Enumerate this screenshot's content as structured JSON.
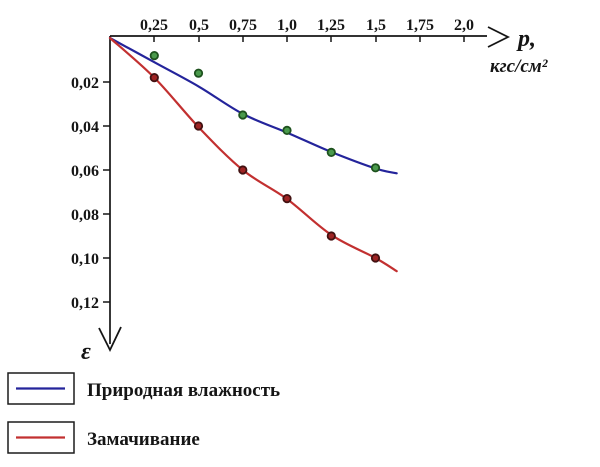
{
  "chart_data": {
    "type": "scatter",
    "title": "",
    "x_axis": {
      "label_line1": "p,",
      "label_line2": "кгс/см²",
      "ticks": [
        0.25,
        0.5,
        0.75,
        1.0,
        1.25,
        1.5,
        1.75,
        2.0
      ],
      "tick_labels": [
        "0,25",
        "0,5",
        "0,75",
        "1,0",
        "1,25",
        "1,5",
        "1,75",
        "2,0"
      ],
      "range": [
        0,
        2.2
      ],
      "direction": "right"
    },
    "y_axis": {
      "label": "ε",
      "ticks": [
        0.02,
        0.04,
        0.06,
        0.08,
        0.1,
        0.12
      ],
      "tick_labels": [
        "0,02",
        "0,04",
        "0,06",
        "0,08",
        "0,10",
        "0,12"
      ],
      "range": [
        0,
        0.14
      ],
      "direction": "down"
    },
    "grid": false,
    "series": [
      {
        "name": "Природная влажность",
        "color": "#24249b",
        "marker_fill": "#4a9a4c",
        "marker_stroke": "#1e521e",
        "x": [
          0.25,
          0.5,
          0.75,
          1.0,
          1.25,
          1.5
        ],
        "y": [
          0.008,
          0.016,
          0.035,
          0.042,
          0.052,
          0.059
        ],
        "curve_x": [
          0,
          0.25,
          0.5,
          0.75,
          1.0,
          1.25,
          1.5,
          1.62
        ],
        "curve_y": [
          0,
          0.011,
          0.022,
          0.0345,
          0.043,
          0.0518,
          0.0593,
          0.0615
        ]
      },
      {
        "name": "Замачивание",
        "color": "#c23030",
        "marker_fill": "#9e2424",
        "marker_stroke": "#421111",
        "x": [
          0.25,
          0.5,
          0.75,
          1.0,
          1.25,
          1.5
        ],
        "y": [
          0.018,
          0.04,
          0.06,
          0.073,
          0.09,
          0.1
        ],
        "curve_x": [
          0,
          0.25,
          0.5,
          0.75,
          1.0,
          1.25,
          1.5,
          1.62
        ],
        "curve_y": [
          0,
          0.018,
          0.0405,
          0.06,
          0.0732,
          0.0895,
          0.1,
          0.106
        ]
      }
    ],
    "legend": {
      "position": "bottom-left",
      "entries": [
        {
          "label": "Природная влажность",
          "color": "#24249b"
        },
        {
          "label": "Замачивание",
          "color": "#c23030"
        }
      ]
    }
  }
}
